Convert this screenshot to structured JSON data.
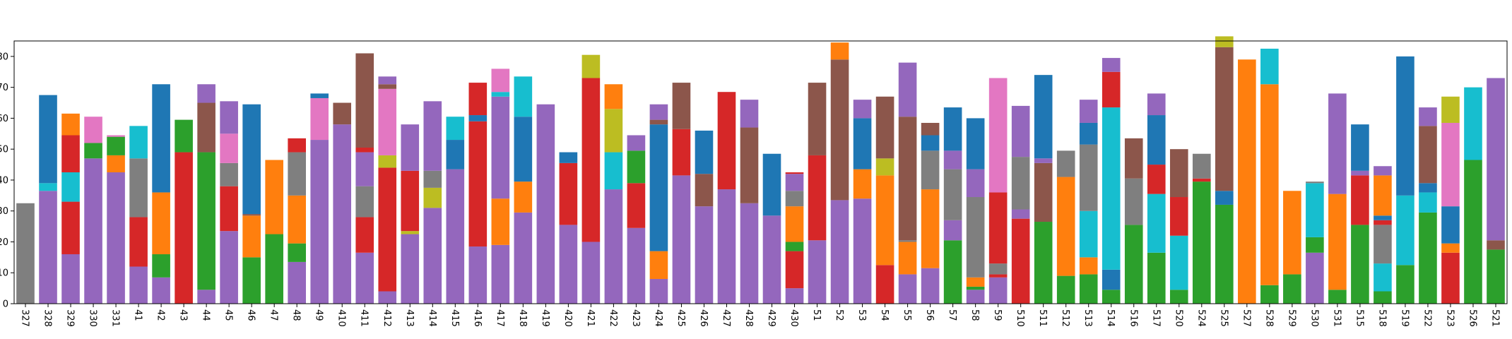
{
  "chart_data": {
    "type": "bar",
    "stacked": true,
    "title": "",
    "xlabel": "",
    "ylabel": "",
    "ylim": [
      0,
      85
    ],
    "yticks": [
      0,
      10,
      20,
      30,
      40,
      50,
      60,
      70,
      80
    ],
    "ytick_labels": [
      "0",
      "10",
      "20",
      "30",
      "40",
      "50",
      "60",
      "70",
      "80"
    ],
    "grid": false,
    "legend": "none",
    "palette": {
      "blue": "#1f77b4",
      "orange": "#ff7f0e",
      "green": "#2ca02c",
      "red": "#d62728",
      "purple": "#9467bd",
      "brown": "#8c564b",
      "pink": "#e377c2",
      "gray": "#7f7f7f",
      "olive": "#bcbd22",
      "cyan": "#17becf"
    },
    "categories": [
      "327",
      "328",
      "329",
      "330",
      "331",
      "41",
      "42",
      "43",
      "44",
      "45",
      "46",
      "47",
      "48",
      "49",
      "410",
      "411",
      "412",
      "413",
      "414",
      "415",
      "416",
      "417",
      "418",
      "419",
      "420",
      "421",
      "422",
      "423",
      "424",
      "425",
      "426",
      "427",
      "428",
      "429",
      "430",
      "51",
      "52",
      "53",
      "54",
      "55",
      "56",
      "57",
      "58",
      "59",
      "510",
      "511",
      "512",
      "513",
      "514",
      "516",
      "517",
      "520",
      "524",
      "525",
      "527",
      "528",
      "529",
      "530",
      "531",
      "515",
      "518",
      "519",
      "522",
      "523",
      "526",
      "521"
    ],
    "stacks": [
      [
        [
          "gray",
          32.5
        ]
      ],
      [
        [
          "purple",
          36.5
        ],
        [
          "cyan",
          2.5
        ],
        [
          "blue",
          28.5
        ]
      ],
      [
        [
          "purple",
          16
        ],
        [
          "red",
          17
        ],
        [
          "cyan",
          9.5
        ],
        [
          "red",
          12
        ],
        [
          "orange",
          7
        ]
      ],
      [
        [
          "purple",
          47
        ],
        [
          "green",
          5
        ],
        [
          "pink",
          8.5
        ]
      ],
      [
        [
          "purple",
          42.5
        ],
        [
          "orange",
          5.5
        ],
        [
          "green",
          6
        ],
        [
          "pink",
          0.5
        ]
      ],
      [
        [
          "purple",
          12
        ],
        [
          "red",
          16
        ],
        [
          "gray",
          19
        ],
        [
          "cyan",
          10.5
        ]
      ],
      [
        [
          "purple",
          8.5
        ],
        [
          "green",
          7.5
        ],
        [
          "orange",
          20
        ],
        [
          "blue",
          35
        ]
      ],
      [
        [
          "red",
          49
        ],
        [
          "green",
          10.5
        ]
      ],
      [
        [
          "purple",
          4.5
        ],
        [
          "green",
          44.5
        ],
        [
          "brown",
          16
        ],
        [
          "purple",
          6
        ]
      ],
      [
        [
          "purple",
          23.5
        ],
        [
          "red",
          14.5
        ],
        [
          "gray",
          7.5
        ],
        [
          "pink",
          9.5
        ],
        [
          "purple",
          10.5
        ]
      ],
      [
        [
          "green",
          15
        ],
        [
          "orange",
          13.5
        ],
        [
          "brown",
          0.5
        ],
        [
          "blue",
          35.5
        ]
      ],
      [
        [
          "green",
          22.5
        ],
        [
          "orange",
          24
        ]
      ],
      [
        [
          "purple",
          13.5
        ],
        [
          "green",
          6
        ],
        [
          "orange",
          15.5
        ],
        [
          "gray",
          14
        ],
        [
          "red",
          4.5
        ]
      ],
      [
        [
          "purple",
          53
        ],
        [
          "pink",
          13.5
        ],
        [
          "blue",
          1.5
        ]
      ],
      [
        [
          "purple",
          58
        ],
        [
          "brown",
          7
        ]
      ],
      [
        [
          "purple",
          16.5
        ],
        [
          "red",
          11.5
        ],
        [
          "gray",
          10
        ],
        [
          "purple",
          11
        ],
        [
          "red",
          1.5
        ],
        [
          "brown",
          30.5
        ]
      ],
      [
        [
          "purple",
          4
        ],
        [
          "red",
          40
        ],
        [
          "olive",
          4
        ],
        [
          "pink",
          21.5
        ],
        [
          "brown",
          1.5
        ],
        [
          "purple",
          2.5
        ]
      ],
      [
        [
          "purple",
          22.5
        ],
        [
          "olive",
          1
        ],
        [
          "red",
          19.5
        ],
        [
          "purple",
          15
        ]
      ],
      [
        [
          "purple",
          31
        ],
        [
          "olive",
          6.5
        ],
        [
          "gray",
          5.5
        ],
        [
          "purple",
          22.5
        ]
      ],
      [
        [
          "purple",
          43.5
        ],
        [
          "blue",
          9.5
        ],
        [
          "cyan",
          7.5
        ]
      ],
      [
        [
          "purple",
          18.5
        ],
        [
          "red",
          40.5
        ],
        [
          "blue",
          2
        ],
        [
          "red",
          10.5
        ]
      ],
      [
        [
          "purple",
          19
        ],
        [
          "orange",
          15
        ],
        [
          "purple",
          33
        ],
        [
          "cyan",
          1.5
        ],
        [
          "pink",
          7.5
        ]
      ],
      [
        [
          "purple",
          29.5
        ],
        [
          "orange",
          10
        ],
        [
          "blue",
          21
        ],
        [
          "cyan",
          13
        ]
      ],
      [
        [
          "purple",
          64.5
        ]
      ],
      [
        [
          "purple",
          25.5
        ],
        [
          "red",
          20
        ],
        [
          "blue",
          3.5
        ]
      ],
      [
        [
          "purple",
          20
        ],
        [
          "red",
          53
        ],
        [
          "olive",
          7.5
        ]
      ],
      [
        [
          "purple",
          37
        ],
        [
          "cyan",
          12
        ],
        [
          "olive",
          14
        ],
        [
          "orange",
          8
        ]
      ],
      [
        [
          "purple",
          24.5
        ],
        [
          "red",
          14.5
        ],
        [
          "green",
          10.5
        ],
        [
          "purple",
          5
        ]
      ],
      [
        [
          "purple",
          8
        ],
        [
          "orange",
          9
        ],
        [
          "blue",
          41
        ],
        [
          "brown",
          1.5
        ],
        [
          "purple",
          5
        ]
      ],
      [
        [
          "purple",
          41.5
        ],
        [
          "red",
          15
        ],
        [
          "brown",
          15
        ]
      ],
      [
        [
          "purple",
          31.5
        ],
        [
          "brown",
          10.5
        ],
        [
          "blue",
          14
        ]
      ],
      [
        [
          "purple",
          37
        ],
        [
          "red",
          31.5
        ]
      ],
      [
        [
          "purple",
          32.5
        ],
        [
          "brown",
          24.5
        ],
        [
          "purple",
          9
        ]
      ],
      [
        [
          "purple",
          28.5
        ],
        [
          "blue",
          20
        ]
      ],
      [
        [
          "purple",
          5
        ],
        [
          "red",
          12
        ],
        [
          "green",
          3
        ],
        [
          "orange",
          11.5
        ],
        [
          "gray",
          5
        ],
        [
          "purple",
          5.5
        ],
        [
          "red",
          0.5
        ]
      ],
      [
        [
          "purple",
          20.5
        ],
        [
          "red",
          27.5
        ],
        [
          "brown",
          23.5
        ]
      ],
      [
        [
          "purple",
          33.5
        ],
        [
          "brown",
          45.5
        ],
        [
          "orange",
          5.5
        ]
      ],
      [
        [
          "purple",
          34
        ],
        [
          "orange",
          9.5
        ],
        [
          "blue",
          16.5
        ],
        [
          "purple",
          6
        ]
      ],
      [
        [
          "red",
          12.5
        ],
        [
          "orange",
          29
        ],
        [
          "olive",
          5.5
        ],
        [
          "brown",
          20
        ]
      ],
      [
        [
          "purple",
          9.5
        ],
        [
          "orange",
          10.5
        ],
        [
          "gray",
          0.5
        ],
        [
          "brown",
          40
        ],
        [
          "purple",
          17.5
        ]
      ],
      [
        [
          "purple",
          11.5
        ],
        [
          "orange",
          25.5
        ],
        [
          "gray",
          12.5
        ],
        [
          "blue",
          5
        ],
        [
          "brown",
          4
        ]
      ],
      [
        [
          "green",
          20.5
        ],
        [
          "purple",
          6.5
        ],
        [
          "gray",
          16.5
        ],
        [
          "purple",
          6
        ],
        [
          "blue",
          14
        ]
      ],
      [
        [
          "purple",
          4.5
        ],
        [
          "green",
          1
        ],
        [
          "orange",
          3
        ],
        [
          "gray",
          26
        ],
        [
          "purple",
          9
        ],
        [
          "blue",
          16.5
        ]
      ],
      [
        [
          "purple",
          8.5
        ],
        [
          "red",
          1
        ],
        [
          "gray",
          3.5
        ],
        [
          "red",
          23
        ],
        [
          "pink",
          37
        ]
      ],
      [
        [
          "red",
          27.5
        ],
        [
          "purple",
          3
        ],
        [
          "gray",
          17
        ],
        [
          "purple",
          16.5
        ]
      ],
      [
        [
          "green",
          26.5
        ],
        [
          "brown",
          19
        ],
        [
          "purple",
          1.5
        ],
        [
          "blue",
          27
        ]
      ],
      [
        [
          "green",
          9
        ],
        [
          "orange",
          32
        ],
        [
          "gray",
          8.5
        ]
      ],
      [
        [
          "green",
          9.5
        ],
        [
          "orange",
          5.5
        ],
        [
          "cyan",
          15
        ],
        [
          "gray",
          21.5
        ],
        [
          "blue",
          7
        ],
        [
          "purple",
          7.5
        ]
      ],
      [
        [
          "green",
          4.5
        ],
        [
          "blue",
          6.5
        ],
        [
          "cyan",
          52.5
        ],
        [
          "red",
          11.5
        ],
        [
          "purple",
          4.5
        ]
      ],
      [
        [
          "green",
          25.5
        ],
        [
          "gray",
          15
        ],
        [
          "brown",
          13
        ]
      ],
      [
        [
          "green",
          16.5
        ],
        [
          "cyan",
          19
        ],
        [
          "red",
          9.5
        ],
        [
          "blue",
          16
        ],
        [
          "purple",
          7
        ]
      ],
      [
        [
          "green",
          4.5
        ],
        [
          "cyan",
          17.5
        ],
        [
          "red",
          12.5
        ],
        [
          "brown",
          15.5
        ]
      ],
      [
        [
          "green",
          39.5
        ],
        [
          "red",
          1
        ],
        [
          "gray",
          8
        ]
      ],
      [
        [
          "green",
          32
        ],
        [
          "blue",
          4.5
        ],
        [
          "brown",
          46.5
        ],
        [
          "olive",
          3.5
        ]
      ],
      [
        [
          "orange",
          79
        ]
      ],
      [
        [
          "green",
          6
        ],
        [
          "orange",
          65
        ],
        [
          "cyan",
          11.5
        ]
      ],
      [
        [
          "green",
          9.5
        ],
        [
          "orange",
          27
        ]
      ],
      [
        [
          "purple",
          16.5
        ],
        [
          "green",
          5
        ],
        [
          "cyan",
          17.5
        ],
        [
          "gray",
          0.5
        ]
      ],
      [
        [
          "green",
          4.5
        ],
        [
          "orange",
          31
        ],
        [
          "purple",
          32.5
        ]
      ],
      [
        [
          "green",
          25.5
        ],
        [
          "red",
          16
        ],
        [
          "purple",
          1.5
        ],
        [
          "blue",
          15
        ]
      ],
      [
        [
          "green",
          4
        ],
        [
          "cyan",
          9
        ],
        [
          "gray",
          12.5
        ],
        [
          "red",
          1.5
        ],
        [
          "blue",
          1.5
        ],
        [
          "orange",
          13
        ],
        [
          "purple",
          3
        ]
      ],
      [
        [
          "green",
          12.5
        ],
        [
          "cyan",
          22.5
        ],
        [
          "blue",
          45
        ]
      ],
      [
        [
          "green",
          29.5
        ],
        [
          "cyan",
          6.5
        ],
        [
          "blue",
          3
        ],
        [
          "brown",
          18.5
        ],
        [
          "purple",
          6
        ]
      ],
      [
        [
          "red",
          16.5
        ],
        [
          "orange",
          3
        ],
        [
          "blue",
          12
        ],
        [
          "pink",
          27
        ],
        [
          "olive",
          8.5
        ]
      ],
      [
        [
          "green",
          46.5
        ],
        [
          "cyan",
          23.5
        ]
      ],
      [
        [
          "green",
          17.5
        ],
        [
          "brown",
          3
        ],
        [
          "purple",
          52.5
        ]
      ]
    ]
  }
}
